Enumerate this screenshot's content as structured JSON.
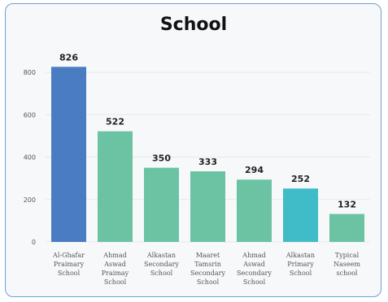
{
  "chart_data": {
    "type": "bar",
    "title": "School",
    "categories": [
      [
        "Al-Ghafar",
        "Praimary",
        "School"
      ],
      [
        "Ahmad",
        "Aswad",
        "Praimay",
        "School"
      ],
      [
        "Alkastan",
        "Secondary",
        "School"
      ],
      [
        "Maaret",
        "Tamsrin",
        "Secondary",
        "School"
      ],
      [
        "Ahmad",
        "Aswad",
        "Secondary",
        "School"
      ],
      [
        "Alkastan",
        "Primary",
        "School"
      ],
      [
        "Typical",
        "Naseem",
        "school"
      ]
    ],
    "values": [
      826,
      522,
      350,
      333,
      294,
      252,
      132
    ],
    "bar_colors": [
      "#4a7cc4",
      "#6cc3a4",
      "#6cc3a4",
      "#6cc3a4",
      "#6cc3a4",
      "#3fbcc8",
      "#6cc3a4"
    ],
    "yticks": [
      0,
      200,
      400,
      600,
      800
    ],
    "ylim": [
      0,
      900
    ],
    "grid": true,
    "xlabel": "",
    "ylabel": ""
  }
}
